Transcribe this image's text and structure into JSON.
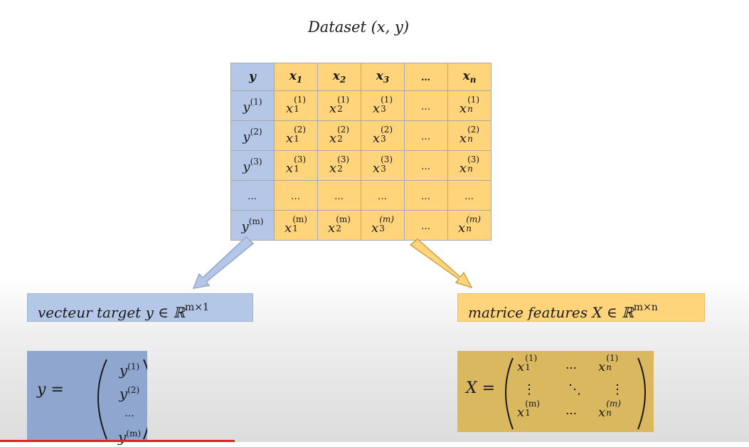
{
  "title": {
    "base": "Dataset",
    "args": "(x, y)"
  },
  "table": {
    "header": [
      {
        "base": "y",
        "sub": ""
      },
      {
        "base": "x",
        "sub": "1"
      },
      {
        "base": "x",
        "sub": "2"
      },
      {
        "base": "x",
        "sub": "3"
      },
      {
        "base": "…",
        "sub": ""
      },
      {
        "base": "x",
        "sub": "n"
      }
    ],
    "rows": [
      {
        "y_sup": "(1)",
        "cells": [
          {
            "sup": "(1)",
            "sub": "1"
          },
          {
            "sup": "(1)",
            "sub": "2"
          },
          {
            "sup": "(1)",
            "sub": "3"
          },
          {
            "ellipsis": "…"
          },
          {
            "sup": "(1)",
            "sub": "n"
          }
        ]
      },
      {
        "y_sup": "(2)",
        "cells": [
          {
            "sup": "(2)",
            "sub": "1"
          },
          {
            "sup": "(2)",
            "sub": "2"
          },
          {
            "sup": "(2)",
            "sub": "3"
          },
          {
            "ellipsis": "…"
          },
          {
            "sup": "(2)",
            "sub": "n"
          }
        ]
      },
      {
        "y_sup": "(3)",
        "cells": [
          {
            "sup": "(3)",
            "sub": "1"
          },
          {
            "sup": "(3)",
            "sub": "2"
          },
          {
            "sup": "(3)",
            "sub": "3"
          },
          {
            "ellipsis": "…"
          },
          {
            "sup": "(3)",
            "sub": "n"
          }
        ]
      },
      {
        "ellipsis_row": "…"
      },
      {
        "y_sup": "(m)",
        "cells": [
          {
            "sup": "(m)",
            "sub": "1"
          },
          {
            "sup": "(m)",
            "sub": "2"
          },
          {
            "sup": "(m)",
            "sub": "3"
          },
          {
            "ellipsis": "…"
          },
          {
            "sup": "(m)",
            "sub": "n"
          }
        ]
      }
    ]
  },
  "target_label": {
    "text": "vecteur target y ∈ ℝ",
    "sup": "m×1"
  },
  "features_label": {
    "text": "matrice features X ∈ ℝ",
    "sup": "m×n"
  },
  "vector": {
    "lhs": "y =",
    "entries": [
      "y(1)",
      "y(2)",
      "...",
      "y(m)"
    ]
  },
  "matrix": {
    "lhs": "X =",
    "top_left": {
      "sup": "(1)",
      "sub": "1"
    },
    "top_right": {
      "sup": "(1)",
      "sub": "n"
    },
    "bottom_left": {
      "sup": "(m)",
      "sub": "1"
    },
    "bottom_right": {
      "sup": "(m)",
      "sub": "n"
    },
    "hdots": "⋯",
    "vdots": "⋮",
    "ddots": "⋱"
  },
  "colors": {
    "target_blue": "#b4c7e7",
    "feature_yellow": "#ffd47a",
    "progress_red": "#e0202a"
  }
}
